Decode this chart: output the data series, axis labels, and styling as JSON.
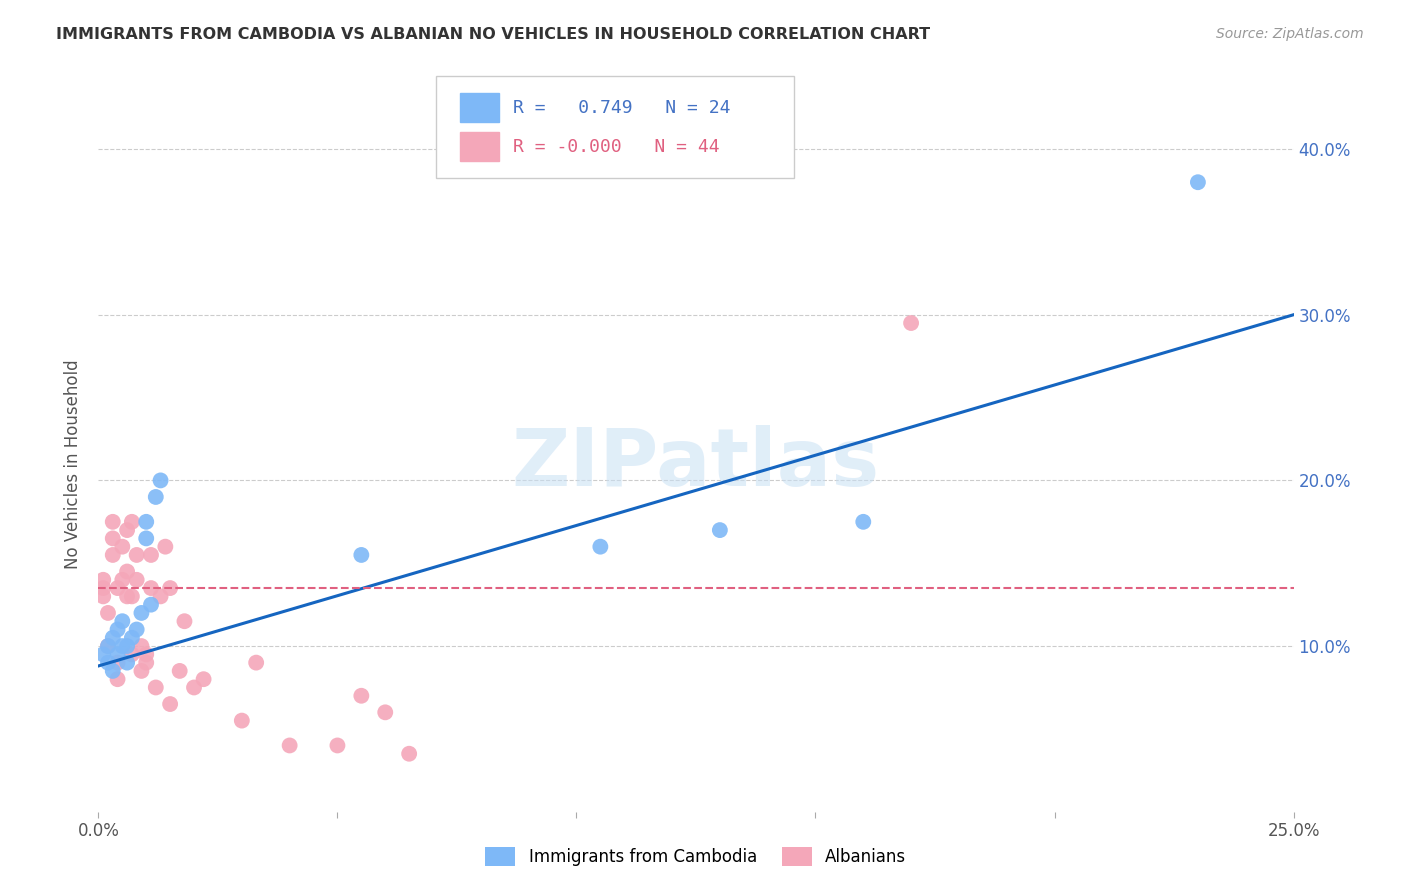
{
  "title": "IMMIGRANTS FROM CAMBODIA VS ALBANIAN NO VEHICLES IN HOUSEHOLD CORRELATION CHART",
  "source": "Source: ZipAtlas.com",
  "ylabel": "No Vehicles in Household",
  "x_min": 0.0,
  "x_max": 0.25,
  "y_min": 0.0,
  "y_max": 0.42,
  "x_ticks": [
    0.0,
    0.05,
    0.1,
    0.15,
    0.2,
    0.25
  ],
  "x_tick_labels": [
    "0.0%",
    "",
    "",
    "",
    "",
    "25.0%"
  ],
  "y_ticks": [
    0.1,
    0.2,
    0.3,
    0.4
  ],
  "y_tick_labels": [
    "10.0%",
    "20.0%",
    "30.0%",
    "40.0%"
  ],
  "cambodia_color": "#7EB8F7",
  "albanian_color": "#F4A7B9",
  "cambodia_line_color": "#1565C0",
  "albanian_line_color": "#E06080",
  "R_cambodia": 0.749,
  "N_cambodia": 24,
  "R_albanian": -0.0,
  "N_albanian": 44,
  "watermark_text": "ZIPatlas",
  "cambodia_x": [
    0.001,
    0.002,
    0.002,
    0.003,
    0.003,
    0.004,
    0.004,
    0.005,
    0.005,
    0.006,
    0.006,
    0.007,
    0.008,
    0.009,
    0.01,
    0.01,
    0.011,
    0.012,
    0.013,
    0.055,
    0.105,
    0.13,
    0.16,
    0.23
  ],
  "cambodia_y": [
    0.095,
    0.09,
    0.1,
    0.085,
    0.105,
    0.095,
    0.11,
    0.1,
    0.115,
    0.09,
    0.1,
    0.105,
    0.11,
    0.12,
    0.175,
    0.165,
    0.125,
    0.19,
    0.2,
    0.155,
    0.16,
    0.17,
    0.175,
    0.38
  ],
  "albanian_x": [
    0.001,
    0.001,
    0.001,
    0.002,
    0.002,
    0.003,
    0.003,
    0.003,
    0.004,
    0.004,
    0.004,
    0.005,
    0.005,
    0.006,
    0.006,
    0.006,
    0.007,
    0.007,
    0.007,
    0.008,
    0.008,
    0.009,
    0.009,
    0.01,
    0.01,
    0.011,
    0.011,
    0.012,
    0.013,
    0.014,
    0.015,
    0.015,
    0.017,
    0.018,
    0.02,
    0.022,
    0.03,
    0.033,
    0.04,
    0.05,
    0.055,
    0.06,
    0.065,
    0.17
  ],
  "albanian_y": [
    0.13,
    0.135,
    0.14,
    0.1,
    0.12,
    0.155,
    0.165,
    0.175,
    0.08,
    0.09,
    0.135,
    0.14,
    0.16,
    0.13,
    0.145,
    0.17,
    0.095,
    0.13,
    0.175,
    0.14,
    0.155,
    0.085,
    0.1,
    0.09,
    0.095,
    0.135,
    0.155,
    0.075,
    0.13,
    0.16,
    0.065,
    0.135,
    0.085,
    0.115,
    0.075,
    0.08,
    0.055,
    0.09,
    0.04,
    0.04,
    0.07,
    0.06,
    0.035,
    0.295
  ],
  "background_color": "#FFFFFF",
  "grid_color": "#CCCCCC",
  "blue_line_x0": 0.0,
  "blue_line_y0": 0.088,
  "blue_line_x1": 0.25,
  "blue_line_y1": 0.3,
  "pink_line_x0": 0.0,
  "pink_line_y0": 0.135,
  "pink_line_x1": 0.25,
  "pink_line_y1": 0.135
}
